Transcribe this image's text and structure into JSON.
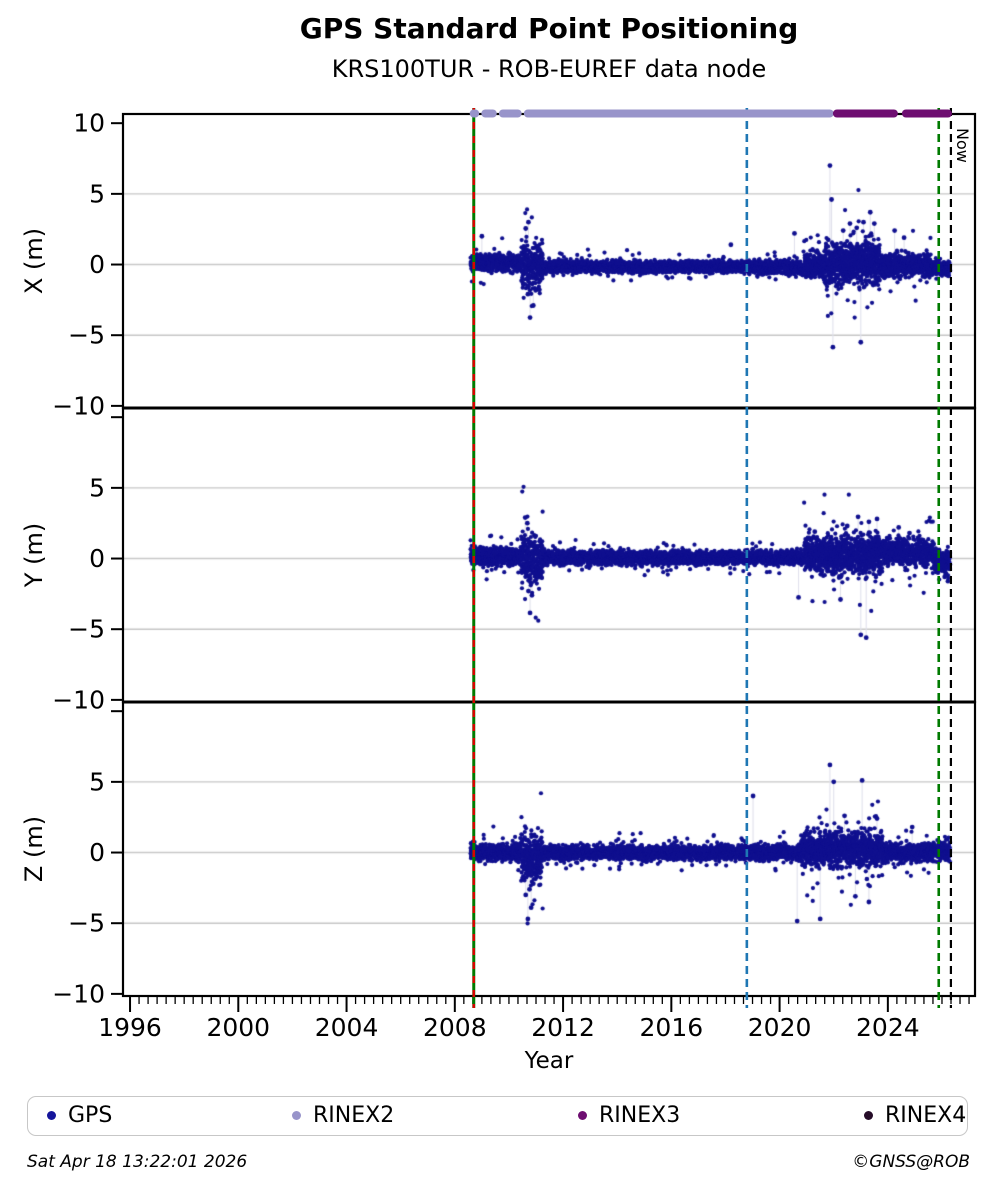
{
  "footer": {
    "timestamp": "Sat Apr 18 13:22:01 2026",
    "copyright": "©GNSS@ROB"
  },
  "legend": [
    {
      "label": "GPS",
      "color": "#15159b"
    },
    {
      "label": "RINEX2",
      "color": "#9894ca"
    },
    {
      "label": "RINEX3",
      "color": "#6e0e71"
    },
    {
      "label": "RINEX4",
      "color": "#260c28"
    }
  ],
  "chart_data": {
    "type": "scatter",
    "title": "GPS Standard Point Positioning",
    "subtitle": "KRS100TUR - ROB-EUREF data node",
    "xlabel": "Year",
    "xlim": [
      1995.74,
      2027.22
    ],
    "x_major_ticks": [
      1996,
      2000,
      2004,
      2008,
      2012,
      2016,
      2020,
      2024
    ],
    "x_minor_step": 0.3333,
    "ylim": [
      -10.15,
      10.65
    ],
    "y_ticks": [
      10,
      5,
      0,
      -5,
      -10
    ],
    "y_tick_labels": [
      "10",
      "5",
      "0",
      "−5",
      "−10"
    ],
    "grid_y": [
      5,
      0,
      -5
    ],
    "grid_color": "#c6c6c6",
    "point_color": "#10108f",
    "connector_color": "#e0e1ec",
    "data_start": 2008.58,
    "data_end": 2026.3,
    "subplots": [
      {
        "ylabel": "X (m)",
        "show_top_tick_label": true,
        "segments": [
          [
            2008.58,
            2010.45,
            0.15,
            0.3,
            300
          ],
          [
            2010.45,
            2011.25,
            -0.15,
            0.85,
            330
          ],
          [
            2011.25,
            2018.8,
            -0.15,
            0.22,
            250
          ],
          [
            2018.8,
            2020.9,
            -0.18,
            0.26,
            250
          ],
          [
            2020.9,
            2021.7,
            -0.1,
            0.5,
            280
          ],
          [
            2021.7,
            2023.7,
            0.15,
            0.85,
            340
          ],
          [
            2023.7,
            2025.6,
            -0.05,
            0.45,
            280
          ],
          [
            2025.6,
            2026.3,
            -0.25,
            0.3,
            300
          ]
        ],
        "outliers": [
          [
            2009.0,
            2.0
          ],
          [
            2010.62,
            2.55
          ],
          [
            2010.72,
            3.0
          ],
          [
            2010.7,
            -2.1
          ],
          [
            2010.78,
            -3.75
          ],
          [
            2010.9,
            -2.9
          ],
          [
            2018.2,
            1.4
          ],
          [
            2020.55,
            2.2
          ],
          [
            2021.86,
            7.0
          ],
          [
            2021.92,
            4.6
          ],
          [
            2021.97,
            -5.85
          ],
          [
            2022.35,
            2.4
          ],
          [
            2022.6,
            2.9
          ],
          [
            2022.85,
            2.6
          ],
          [
            2023.0,
            -5.5
          ],
          [
            2023.1,
            3.0
          ],
          [
            2023.35,
            3.7
          ],
          [
            2023.5,
            2.9
          ],
          [
            2024.25,
            2.4
          ],
          [
            2024.6,
            1.9
          ]
        ]
      },
      {
        "ylabel": "Y (m)",
        "show_top_tick_label": false,
        "segments": [
          [
            2008.58,
            2010.45,
            0.15,
            0.32,
            300
          ],
          [
            2010.45,
            2011.25,
            0.0,
            0.95,
            330
          ],
          [
            2011.25,
            2020.9,
            0.05,
            0.25,
            250
          ],
          [
            2020.9,
            2023.8,
            0.3,
            0.75,
            340
          ],
          [
            2023.8,
            2025.7,
            0.45,
            0.5,
            280
          ],
          [
            2025.7,
            2026.3,
            -0.2,
            0.45,
            300
          ]
        ],
        "outliers": [
          [
            2010.6,
            2.9
          ],
          [
            2010.68,
            2.5
          ],
          [
            2010.72,
            -2.3
          ],
          [
            2010.78,
            -3.85
          ],
          [
            2010.85,
            -2.6
          ],
          [
            2020.7,
            -2.75
          ],
          [
            2021.3,
            1.9
          ],
          [
            2022.25,
            -2.9
          ],
          [
            2022.5,
            2.3
          ],
          [
            2022.9,
            2.95
          ],
          [
            2023.0,
            -5.4
          ],
          [
            2023.2,
            -5.6
          ],
          [
            2023.3,
            2.6
          ],
          [
            2023.6,
            2.8
          ],
          [
            2024.4,
            2.2
          ],
          [
            2024.8,
            1.8
          ],
          [
            2026.1,
            -1.3
          ],
          [
            2026.22,
            -1.6
          ]
        ]
      },
      {
        "ylabel": "Z (m)",
        "show_top_tick_label": false,
        "segments": [
          [
            2008.58,
            2010.45,
            0.0,
            0.3,
            300
          ],
          [
            2010.45,
            2011.25,
            -0.35,
            0.95,
            330
          ],
          [
            2011.25,
            2018.9,
            -0.02,
            0.27,
            250
          ],
          [
            2018.9,
            2020.8,
            0.0,
            0.3,
            250
          ],
          [
            2020.8,
            2023.8,
            0.25,
            0.65,
            340
          ],
          [
            2023.8,
            2026.3,
            0.05,
            0.35,
            290
          ]
        ],
        "outliers": [
          [
            2010.62,
            -3.0
          ],
          [
            2010.7,
            -4.7
          ],
          [
            2010.76,
            -2.6
          ],
          [
            2010.82,
            -3.9
          ],
          [
            2010.9,
            -2.2
          ],
          [
            2019.02,
            4.0
          ],
          [
            2020.65,
            -4.85
          ],
          [
            2021.5,
            -4.7
          ],
          [
            2021.86,
            6.2
          ],
          [
            2022.0,
            5.0
          ],
          [
            2022.4,
            2.6
          ],
          [
            2022.8,
            -3.1
          ],
          [
            2023.05,
            5.1
          ],
          [
            2023.3,
            -3.5
          ],
          [
            2023.6,
            2.4
          ],
          [
            2024.9,
            1.8
          ]
        ]
      }
    ],
    "events": [
      {
        "year": 2008.7,
        "style": "solid",
        "color": "#007a00",
        "width": 3,
        "overlay": {
          "style": "dashed",
          "color": "#dd0000",
          "dash": "7 7",
          "width": 2.4
        },
        "name": "data-begin-line"
      },
      {
        "year": 2018.79,
        "style": "dashed",
        "color": "#1f77b4",
        "dash": "8 5",
        "width": 2.6,
        "name": "event-blue-line"
      },
      {
        "year": 2025.88,
        "style": "dashed",
        "color": "#007a00",
        "dash": "8 5",
        "width": 2.6,
        "name": "event-green-line"
      },
      {
        "year": 2026.33,
        "style": "dashed",
        "color": "#000000",
        "dash": "8 5",
        "width": 2.2,
        "name": "now-line",
        "label": "Now"
      }
    ],
    "rinex_bars": [
      {
        "name": "RINEX2",
        "color": "#9894ca",
        "segments": [
          [
            2008.55,
            2008.9
          ],
          [
            2008.98,
            2009.55
          ],
          [
            2009.63,
            2010.47
          ],
          [
            2010.55,
            2022.0
          ]
        ]
      },
      {
        "name": "RINEX3",
        "color": "#6e0e71",
        "segments": [
          [
            2021.97,
            2024.37
          ],
          [
            2024.52,
            2026.37
          ]
        ]
      }
    ],
    "legend_position": "bottom",
    "grid": "horizontal-only"
  }
}
